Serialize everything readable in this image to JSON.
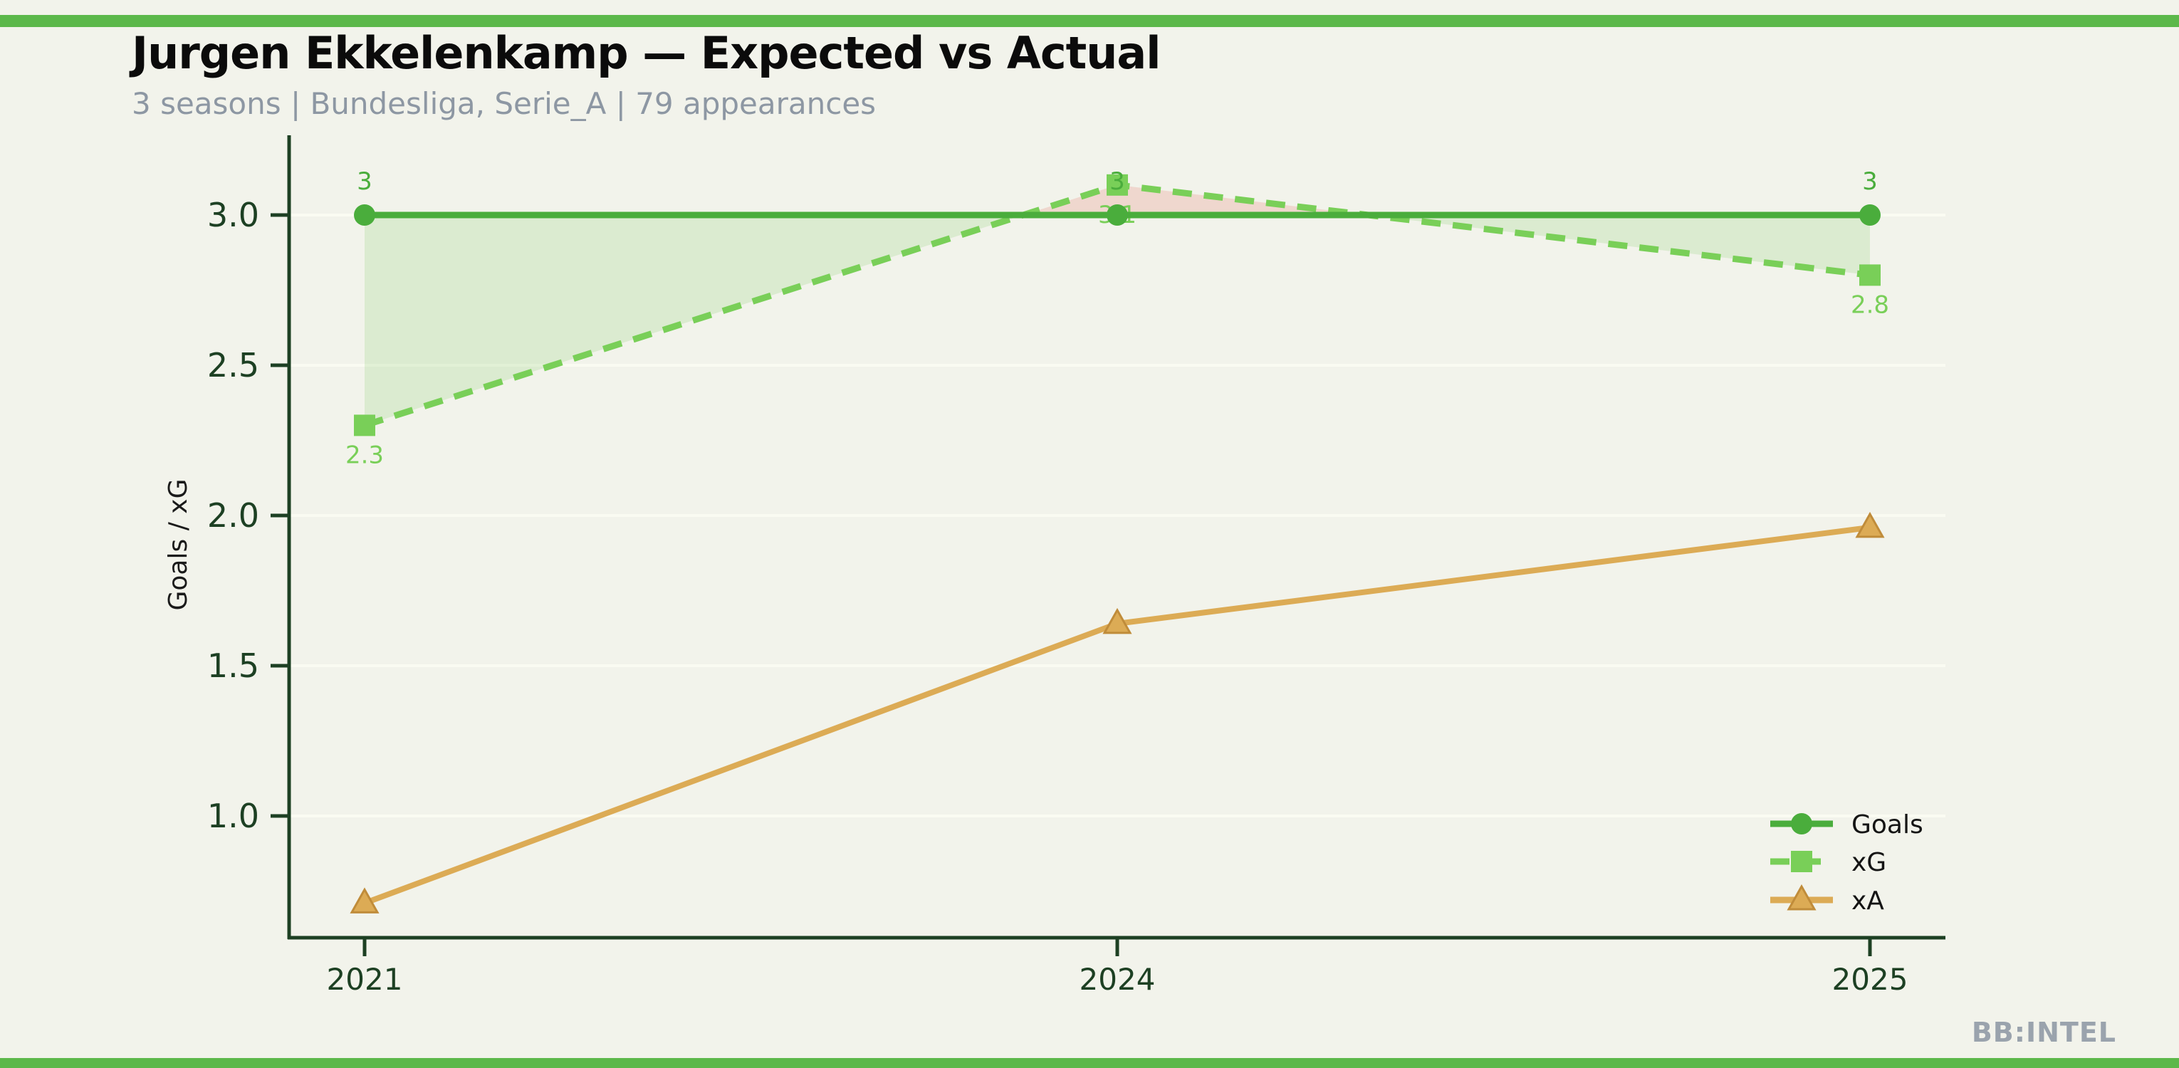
{
  "page": {
    "background": "#f2f3eb",
    "accent_color": "#5cb84a"
  },
  "header": {
    "title": "Jurgen Ekkelenkamp — Expected vs Actual",
    "subtitle": "3 seasons | Bundesliga, Serie_A | 79 appearances"
  },
  "footer": {
    "watermark": "BB:INTEL"
  },
  "chart_data": {
    "type": "line",
    "title": "Jurgen Ekkelenkamp — Expected vs Actual",
    "subtitle": "3 seasons | Bundesliga, Serie_A | 79 appearances",
    "categories": [
      "2021",
      "2024",
      "2025"
    ],
    "series": [
      {
        "name": "Goals",
        "values": [
          3,
          3,
          3
        ],
        "point_labels": [
          "3",
          "3",
          "3"
        ],
        "color": "#4aad3c",
        "marker": "circle",
        "line_style": "solid",
        "label_side": "above"
      },
      {
        "name": "xG",
        "values": [
          2.3,
          3.1,
          2.8
        ],
        "point_labels": [
          "2.3",
          "3.1",
          "2.8"
        ],
        "color": "#79cf58",
        "marker": "square",
        "line_style": "dashed",
        "label_side": "below"
      },
      {
        "name": "xA",
        "values": [
          0.71,
          1.64,
          1.96
        ],
        "point_labels": null,
        "color": "#dcab55",
        "marker": "triangle",
        "line_style": "solid",
        "label_side": null
      }
    ],
    "xlabel": "",
    "ylabel": "Goals / xG",
    "yticks": [
      "1.0",
      "1.5",
      "2.0",
      "2.5",
      "3.0"
    ],
    "ytick_values": [
      1.0,
      1.5,
      2.0,
      2.5,
      3.0
    ],
    "ylim": [
      0.6,
      3.27
    ],
    "grid": true,
    "legend": {
      "position": "lower right",
      "entries": [
        "Goals",
        "xG",
        "xA"
      ]
    },
    "fill_between": {
      "series_a": "Goals",
      "series_b": "xG",
      "above_color": "rgba(118,198,86,0.18)",
      "below_color": "rgba(228,118,104,0.22)"
    },
    "axis_color": "#1d4023",
    "tick_label_color": "#1d4023",
    "ylabel_color": "#1a1a1a",
    "grid_color": "#fafbf2",
    "legend_text_color": "#141414",
    "marker_edge_color": "#c08c3a"
  }
}
